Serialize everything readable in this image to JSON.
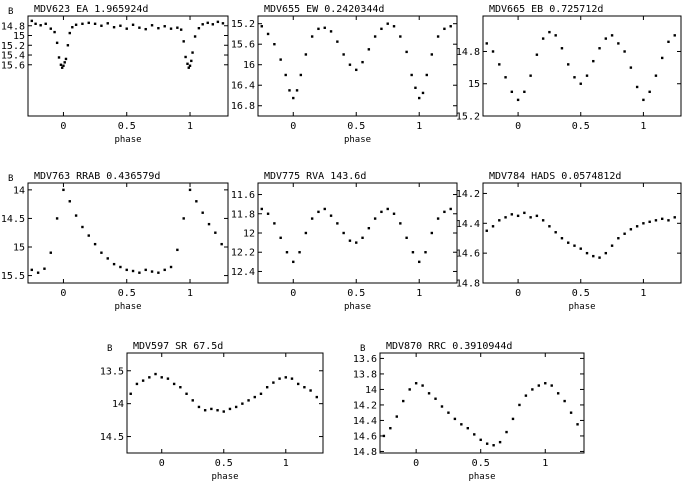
{
  "figure": {
    "background": "#ffffff",
    "ink": "#000000"
  },
  "chart_data": [
    {
      "type": "scatter",
      "title": "MDV623  EA  1.965924d",
      "ylabel": "B",
      "xlabel": "phase",
      "xlim": [
        -0.28,
        1.3
      ],
      "ylim": [
        16.65,
        14.6
      ],
      "xticks": [
        0,
        0.5,
        1
      ],
      "xtick_labels": [
        "0",
        "0.5",
        "1"
      ],
      "yticks": [
        14.8,
        15,
        15.2,
        15.4,
        15.6
      ],
      "ytick_labels": [
        "14.8",
        "15",
        "15.2",
        "15.4",
        "15.6"
      ],
      "points": [
        [
          -0.25,
          14.7
        ],
        [
          -0.22,
          14.76
        ],
        [
          -0.18,
          14.79
        ],
        [
          -0.14,
          14.76
        ],
        [
          -0.1,
          14.86
        ],
        [
          -0.07,
          14.93
        ],
        [
          -0.05,
          15.15
        ],
        [
          -0.035,
          15.45
        ],
        [
          -0.02,
          15.6
        ],
        [
          -0.01,
          15.66
        ],
        [
          0.0,
          15.62
        ],
        [
          0.01,
          15.55
        ],
        [
          0.02,
          15.48
        ],
        [
          0.035,
          15.2
        ],
        [
          0.05,
          14.95
        ],
        [
          0.07,
          14.83
        ],
        [
          0.1,
          14.78
        ],
        [
          0.15,
          14.76
        ],
        [
          0.2,
          14.74
        ],
        [
          0.25,
          14.76
        ],
        [
          0.3,
          14.8
        ],
        [
          0.35,
          14.75
        ],
        [
          0.4,
          14.83
        ],
        [
          0.45,
          14.8
        ],
        [
          0.5,
          14.86
        ],
        [
          0.55,
          14.78
        ],
        [
          0.6,
          14.84
        ],
        [
          0.65,
          14.87
        ],
        [
          0.7,
          14.79
        ],
        [
          0.75,
          14.85
        ],
        [
          0.8,
          14.81
        ],
        [
          0.85,
          14.86
        ],
        [
          0.9,
          14.84
        ],
        [
          0.93,
          14.88
        ],
        [
          0.95,
          15.12
        ],
        [
          0.965,
          15.44
        ],
        [
          0.98,
          15.58
        ],
        [
          0.99,
          15.66
        ],
        [
          1.0,
          15.62
        ],
        [
          1.01,
          15.52
        ],
        [
          1.02,
          15.35
        ],
        [
          1.04,
          15.02
        ],
        [
          1.07,
          14.85
        ],
        [
          1.1,
          14.77
        ],
        [
          1.14,
          14.74
        ],
        [
          1.18,
          14.77
        ],
        [
          1.22,
          14.72
        ],
        [
          1.26,
          14.75
        ]
      ]
    },
    {
      "type": "scatter",
      "title": "MDV655  EW  0.2420344d",
      "ylabel": "",
      "xlabel": "phase",
      "xlim": [
        -0.28,
        1.3
      ],
      "ylim": [
        17.0,
        15.05
      ],
      "xticks": [
        0,
        0.5,
        1
      ],
      "xtick_labels": [
        "0",
        "0.5",
        "1"
      ],
      "yticks": [
        15.2,
        15.6,
        16,
        16.4,
        16.8
      ],
      "ytick_labels": [
        "15.2",
        "15.6",
        "16",
        "16.4",
        "16.8"
      ],
      "points": [
        [
          -0.25,
          15.25
        ],
        [
          -0.2,
          15.4
        ],
        [
          -0.15,
          15.6
        ],
        [
          -0.1,
          15.9
        ],
        [
          -0.06,
          16.2
        ],
        [
          -0.03,
          16.5
        ],
        [
          0.0,
          16.65
        ],
        [
          0.03,
          16.5
        ],
        [
          0.06,
          16.2
        ],
        [
          0.1,
          15.8
        ],
        [
          0.15,
          15.45
        ],
        [
          0.2,
          15.3
        ],
        [
          0.25,
          15.28
        ],
        [
          0.3,
          15.35
        ],
        [
          0.35,
          15.55
        ],
        [
          0.4,
          15.8
        ],
        [
          0.45,
          16.0
        ],
        [
          0.5,
          16.1
        ],
        [
          0.55,
          15.95
        ],
        [
          0.6,
          15.7
        ],
        [
          0.65,
          15.45
        ],
        [
          0.7,
          15.3
        ],
        [
          0.75,
          15.2
        ],
        [
          0.8,
          15.25
        ],
        [
          0.85,
          15.45
        ],
        [
          0.9,
          15.75
        ],
        [
          0.94,
          16.2
        ],
        [
          0.97,
          16.45
        ],
        [
          1.0,
          16.65
        ],
        [
          1.03,
          16.55
        ],
        [
          1.06,
          16.2
        ],
        [
          1.1,
          15.8
        ],
        [
          1.15,
          15.45
        ],
        [
          1.2,
          15.3
        ],
        [
          1.25,
          15.25
        ]
      ]
    },
    {
      "type": "scatter",
      "title": "MDV665  EB  0.725712d",
      "ylabel": "",
      "xlabel": "",
      "xlim": [
        -0.28,
        1.3
      ],
      "ylim": [
        15.2,
        14.58
      ],
      "xticks": [
        0,
        0.5,
        1
      ],
      "xtick_labels": [
        "0",
        "0.5",
        "1"
      ],
      "yticks": [
        14.8,
        15,
        15.2
      ],
      "ytick_labels": [
        "14.8",
        "15",
        "15.2"
      ],
      "points": [
        [
          -0.25,
          14.75
        ],
        [
          -0.2,
          14.8
        ],
        [
          -0.15,
          14.88
        ],
        [
          -0.1,
          14.96
        ],
        [
          -0.05,
          15.05
        ],
        [
          0.0,
          15.1
        ],
        [
          0.05,
          15.05
        ],
        [
          0.1,
          14.95
        ],
        [
          0.15,
          14.82
        ],
        [
          0.2,
          14.72
        ],
        [
          0.25,
          14.68
        ],
        [
          0.3,
          14.7
        ],
        [
          0.35,
          14.78
        ],
        [
          0.4,
          14.88
        ],
        [
          0.45,
          14.96
        ],
        [
          0.5,
          15.0
        ],
        [
          0.55,
          14.95
        ],
        [
          0.6,
          14.86
        ],
        [
          0.65,
          14.78
        ],
        [
          0.7,
          14.72
        ],
        [
          0.75,
          14.7
        ],
        [
          0.8,
          14.75
        ],
        [
          0.85,
          14.8
        ],
        [
          0.9,
          14.9
        ],
        [
          0.95,
          15.02
        ],
        [
          1.0,
          15.1
        ],
        [
          1.05,
          15.05
        ],
        [
          1.1,
          14.95
        ],
        [
          1.15,
          14.84
        ],
        [
          1.2,
          14.74
        ],
        [
          1.25,
          14.7
        ]
      ]
    },
    {
      "type": "scatter",
      "title": "MDV763  RRAB  0.436579d",
      "ylabel": "B",
      "xlabel": "phase",
      "xlim": [
        -0.28,
        1.3
      ],
      "ylim": [
        15.63,
        13.88
      ],
      "xticks": [
        0,
        0.5,
        1
      ],
      "xtick_labels": [
        "0",
        "0.5",
        "1"
      ],
      "yticks": [
        14,
        14.5,
        15,
        15.5
      ],
      "ytick_labels": [
        "14",
        "14.5",
        "15",
        "15.5"
      ],
      "points": [
        [
          -0.25,
          15.4
        ],
        [
          -0.2,
          15.45
        ],
        [
          -0.15,
          15.38
        ],
        [
          -0.1,
          15.1
        ],
        [
          -0.05,
          14.5
        ],
        [
          0.0,
          14.0
        ],
        [
          0.05,
          14.2
        ],
        [
          0.1,
          14.45
        ],
        [
          0.15,
          14.65
        ],
        [
          0.2,
          14.8
        ],
        [
          0.25,
          14.95
        ],
        [
          0.3,
          15.1
        ],
        [
          0.35,
          15.2
        ],
        [
          0.4,
          15.3
        ],
        [
          0.45,
          15.35
        ],
        [
          0.5,
          15.4
        ],
        [
          0.55,
          15.42
        ],
        [
          0.6,
          15.45
        ],
        [
          0.65,
          15.4
        ],
        [
          0.7,
          15.43
        ],
        [
          0.75,
          15.45
        ],
        [
          0.8,
          15.4
        ],
        [
          0.85,
          15.35
        ],
        [
          0.9,
          15.05
        ],
        [
          0.95,
          14.5
        ],
        [
          1.0,
          14.0
        ],
        [
          1.05,
          14.2
        ],
        [
          1.1,
          14.4
        ],
        [
          1.15,
          14.6
        ],
        [
          1.2,
          14.75
        ],
        [
          1.25,
          14.95
        ]
      ]
    },
    {
      "type": "scatter",
      "title": "MDV775  RVA  143.6d",
      "ylabel": "",
      "xlabel": "phase",
      "xlim": [
        -0.28,
        1.3
      ],
      "ylim": [
        12.52,
        11.48
      ],
      "xticks": [
        0,
        0.5,
        1
      ],
      "xtick_labels": [
        "0",
        "0.5",
        "1"
      ],
      "yticks": [
        11.6,
        11.8,
        12,
        12.2,
        12.4
      ],
      "ytick_labels": [
        "11.6",
        "11.8",
        "12",
        "12.2",
        "12.4"
      ],
      "points": [
        [
          -0.25,
          11.75
        ],
        [
          -0.2,
          11.8
        ],
        [
          -0.15,
          11.9
        ],
        [
          -0.1,
          12.05
        ],
        [
          -0.05,
          12.2
        ],
        [
          0.0,
          12.3
        ],
        [
          0.05,
          12.2
        ],
        [
          0.1,
          12.0
        ],
        [
          0.15,
          11.85
        ],
        [
          0.2,
          11.78
        ],
        [
          0.25,
          11.75
        ],
        [
          0.3,
          11.82
        ],
        [
          0.35,
          11.9
        ],
        [
          0.4,
          12.0
        ],
        [
          0.45,
          12.08
        ],
        [
          0.5,
          12.1
        ],
        [
          0.55,
          12.05
        ],
        [
          0.6,
          11.95
        ],
        [
          0.65,
          11.85
        ],
        [
          0.7,
          11.78
        ],
        [
          0.75,
          11.75
        ],
        [
          0.8,
          11.8
        ],
        [
          0.85,
          11.9
        ],
        [
          0.9,
          12.05
        ],
        [
          0.95,
          12.2
        ],
        [
          1.0,
          12.3
        ],
        [
          1.05,
          12.2
        ],
        [
          1.1,
          12.0
        ],
        [
          1.15,
          11.85
        ],
        [
          1.2,
          11.78
        ],
        [
          1.25,
          11.75
        ]
      ]
    },
    {
      "type": "scatter",
      "title": "MDV784  HADS  0.0574812d",
      "ylabel": "",
      "xlabel": "phase",
      "xlim": [
        -0.28,
        1.3
      ],
      "ylim": [
        14.8,
        14.13
      ],
      "xticks": [
        0,
        0.5,
        1
      ],
      "xtick_labels": [
        "0",
        "0.5",
        "1"
      ],
      "yticks": [
        14.2,
        14.4,
        14.6,
        14.8
      ],
      "ytick_labels": [
        "14.2",
        "14.4",
        "14.6",
        "14.8"
      ],
      "points": [
        [
          -0.25,
          14.45
        ],
        [
          -0.2,
          14.42
        ],
        [
          -0.15,
          14.38
        ],
        [
          -0.1,
          14.36
        ],
        [
          -0.05,
          14.34
        ],
        [
          0.0,
          14.35
        ],
        [
          0.05,
          14.33
        ],
        [
          0.1,
          14.36
        ],
        [
          0.15,
          14.35
        ],
        [
          0.2,
          14.38
        ],
        [
          0.25,
          14.42
        ],
        [
          0.3,
          14.46
        ],
        [
          0.35,
          14.5
        ],
        [
          0.4,
          14.53
        ],
        [
          0.45,
          14.55
        ],
        [
          0.5,
          14.57
        ],
        [
          0.55,
          14.6
        ],
        [
          0.6,
          14.62
        ],
        [
          0.65,
          14.63
        ],
        [
          0.7,
          14.6
        ],
        [
          0.75,
          14.55
        ],
        [
          0.8,
          14.5
        ],
        [
          0.85,
          14.47
        ],
        [
          0.9,
          14.44
        ],
        [
          0.95,
          14.42
        ],
        [
          1.0,
          14.4
        ],
        [
          1.05,
          14.39
        ],
        [
          1.1,
          14.38
        ],
        [
          1.15,
          14.37
        ],
        [
          1.2,
          14.38
        ],
        [
          1.25,
          14.36
        ]
      ]
    },
    {
      "type": "scatter",
      "title": "MDV597  SR  67.5d",
      "ylabel": "B",
      "xlabel": "phase",
      "xlim": [
        -0.28,
        1.3
      ],
      "ylim": [
        14.75,
        13.23
      ],
      "xticks": [
        0,
        0.5,
        1
      ],
      "xtick_labels": [
        "0",
        "0.5",
        "1"
      ],
      "yticks": [
        13.5,
        14,
        14.5
      ],
      "ytick_labels": [
        "13.5",
        "14",
        "14.5"
      ],
      "points": [
        [
          -0.25,
          13.85
        ],
        [
          -0.2,
          13.7
        ],
        [
          -0.15,
          13.65
        ],
        [
          -0.1,
          13.6
        ],
        [
          -0.05,
          13.55
        ],
        [
          0.0,
          13.6
        ],
        [
          0.05,
          13.62
        ],
        [
          0.1,
          13.7
        ],
        [
          0.15,
          13.75
        ],
        [
          0.2,
          13.85
        ],
        [
          0.25,
          13.95
        ],
        [
          0.3,
          14.05
        ],
        [
          0.35,
          14.1
        ],
        [
          0.4,
          14.08
        ],
        [
          0.45,
          14.1
        ],
        [
          0.5,
          14.12
        ],
        [
          0.55,
          14.08
        ],
        [
          0.6,
          14.05
        ],
        [
          0.65,
          14.0
        ],
        [
          0.7,
          13.95
        ],
        [
          0.75,
          13.9
        ],
        [
          0.8,
          13.85
        ],
        [
          0.85,
          13.75
        ],
        [
          0.9,
          13.68
        ],
        [
          0.95,
          13.62
        ],
        [
          1.0,
          13.6
        ],
        [
          1.05,
          13.62
        ],
        [
          1.1,
          13.7
        ],
        [
          1.15,
          13.75
        ],
        [
          1.2,
          13.8
        ],
        [
          1.25,
          13.9
        ]
      ]
    },
    {
      "type": "scatter",
      "title": "MDV870  RRC  0.3910944d",
      "ylabel": "B",
      "xlabel": "phase",
      "xlim": [
        -0.28,
        1.3
      ],
      "ylim": [
        14.82,
        13.53
      ],
      "xticks": [
        0,
        0.5,
        1
      ],
      "xtick_labels": [
        "0",
        "0.5",
        "1"
      ],
      "yticks": [
        13.6,
        13.8,
        14,
        14.2,
        14.4,
        14.6,
        14.8
      ],
      "ytick_labels": [
        "13.6",
        "13.8",
        "14",
        "14.2",
        "14.4",
        "14.6",
        "14.8"
      ],
      "points": [
        [
          -0.25,
          14.6
        ],
        [
          -0.2,
          14.5
        ],
        [
          -0.15,
          14.35
        ],
        [
          -0.1,
          14.15
        ],
        [
          -0.05,
          14.0
        ],
        [
          0.0,
          13.92
        ],
        [
          0.05,
          13.95
        ],
        [
          0.1,
          14.05
        ],
        [
          0.15,
          14.12
        ],
        [
          0.2,
          14.22
        ],
        [
          0.25,
          14.3
        ],
        [
          0.3,
          14.38
        ],
        [
          0.35,
          14.45
        ],
        [
          0.4,
          14.5
        ],
        [
          0.45,
          14.58
        ],
        [
          0.5,
          14.65
        ],
        [
          0.55,
          14.7
        ],
        [
          0.6,
          14.72
        ],
        [
          0.65,
          14.68
        ],
        [
          0.7,
          14.55
        ],
        [
          0.75,
          14.38
        ],
        [
          0.8,
          14.2
        ],
        [
          0.85,
          14.08
        ],
        [
          0.9,
          14.0
        ],
        [
          0.95,
          13.95
        ],
        [
          1.0,
          13.92
        ],
        [
          1.05,
          13.95
        ],
        [
          1.1,
          14.05
        ],
        [
          1.15,
          14.15
        ],
        [
          1.2,
          14.3
        ],
        [
          1.25,
          14.45
        ]
      ]
    }
  ]
}
